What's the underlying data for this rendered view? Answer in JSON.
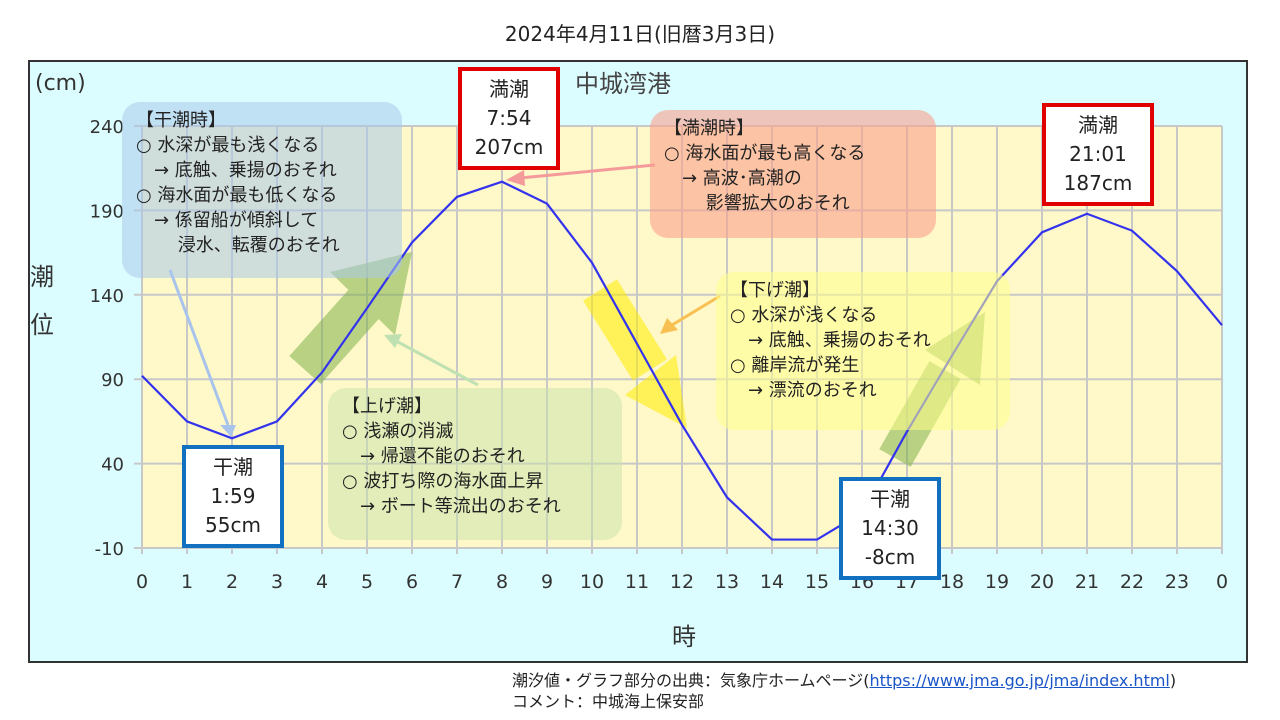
{
  "date_title": "2024年4月11日(旧暦3月3日)",
  "chart_data": {
    "type": "line",
    "title": "中城湾港",
    "ylabel": "潮位",
    "yunit": "(cm)",
    "xlabel": "時",
    "ylim": [
      -10,
      240
    ],
    "yticks": [
      "240",
      "190",
      "140",
      "90",
      "40",
      "-10"
    ],
    "ytick_values": [
      240,
      190,
      140,
      90,
      40,
      -10
    ],
    "xtick_labels": [
      "0",
      "1",
      "2",
      "3",
      "4",
      "5",
      "6",
      "7",
      "8",
      "9",
      "10",
      "11",
      "12",
      "13",
      "14",
      "15",
      "16",
      "17",
      "18",
      "19",
      "20",
      "21",
      "22",
      "23",
      "0"
    ],
    "x": [
      0,
      1,
      2,
      3,
      4,
      5,
      6,
      7,
      8,
      9,
      10,
      11,
      12,
      13,
      14,
      15,
      16,
      17,
      18,
      19,
      20,
      21,
      22,
      23,
      24
    ],
    "values": [
      92,
      65,
      55,
      65,
      94,
      132,
      171,
      198,
      207,
      194,
      159,
      111,
      63,
      20,
      -5,
      -5,
      11,
      59,
      104,
      148,
      177,
      188,
      178,
      154,
      122
    ],
    "line_color": "#3333ee",
    "grid": true
  },
  "tides": [
    {
      "label": "干潮",
      "time": "1:59",
      "level": "55cm",
      "type": "low"
    },
    {
      "label": "満潮",
      "time": "7:54",
      "level": "207cm",
      "type": "high"
    },
    {
      "label": "干潮",
      "time": "14:30",
      "level": "-8cm",
      "type": "low"
    },
    {
      "label": "満潮",
      "time": "21:01",
      "level": "187cm",
      "type": "high"
    }
  ],
  "notes": {
    "low_tide": "【干潮時】\n○ 水深が最も浅くなる\n　→ 底触、乗揚のおそれ\n○ 海水面が最も低くなる\n　→ 係留船が傾斜して\n　　 浸水、転覆のおそれ",
    "high_tide": "【満潮時】\n○ 海水面が最も高くなる\n　→ 高波･高潮の\n　　 影響拡大のおそれ",
    "rising": "【上げ潮】\n○ 浅瀬の消滅\n　→ 帰還不能のおそれ\n○ 波打ち際の海水面上昇\n　→ ボート等流出のおそれ",
    "falling": "【下げ潮】\n○ 水深が浅くなる\n　→ 底触、乗揚のおそれ\n○ 離岸流が発生\n　→ 漂流のおそれ"
  },
  "footer": {
    "source_prefix": "潮汐値・グラフ部分の出典：気象庁ホームページ(",
    "source_link": "https://www.jma.go.jp/jma/index.html",
    "source_suffix": ")",
    "comment": "コメント：中城海上保安部"
  }
}
